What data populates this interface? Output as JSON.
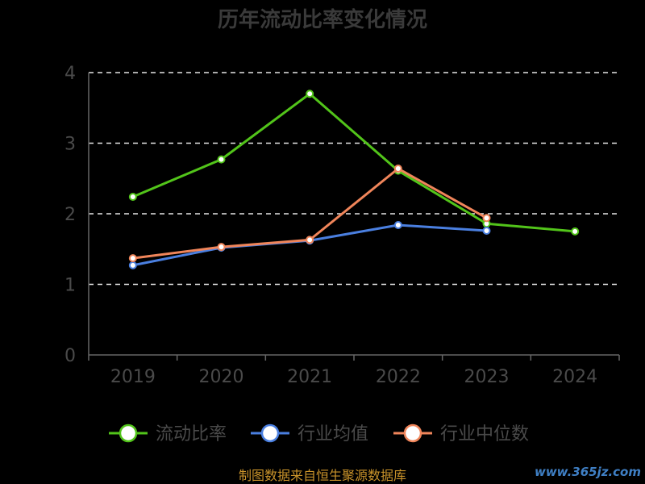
{
  "chart_data": {
    "type": "line",
    "title": "历年流动比率变化情况",
    "categories": [
      "2019",
      "2020",
      "2021",
      "2022",
      "2023",
      "2024"
    ],
    "ylim": [
      0,
      4
    ],
    "yticks": [
      "0",
      "1",
      "2",
      "3",
      "4"
    ],
    "grid": true,
    "legend_position": "bottom",
    "series": [
      {
        "name": "流动比率",
        "color": "#52c41a",
        "values": [
          2.24,
          2.77,
          3.7,
          2.61,
          1.86,
          1.75
        ]
      },
      {
        "name": "行业均值",
        "color": "#4a7fe0",
        "values": [
          1.27,
          1.52,
          1.62,
          1.84,
          1.76,
          null
        ]
      },
      {
        "name": "行业中位数",
        "color": "#f0855a",
        "values": [
          1.37,
          1.53,
          1.63,
          2.64,
          1.94,
          null
        ]
      }
    ]
  },
  "source_text": "制图数据来自恒生聚源数据库",
  "watermark": "www.365jz.com"
}
